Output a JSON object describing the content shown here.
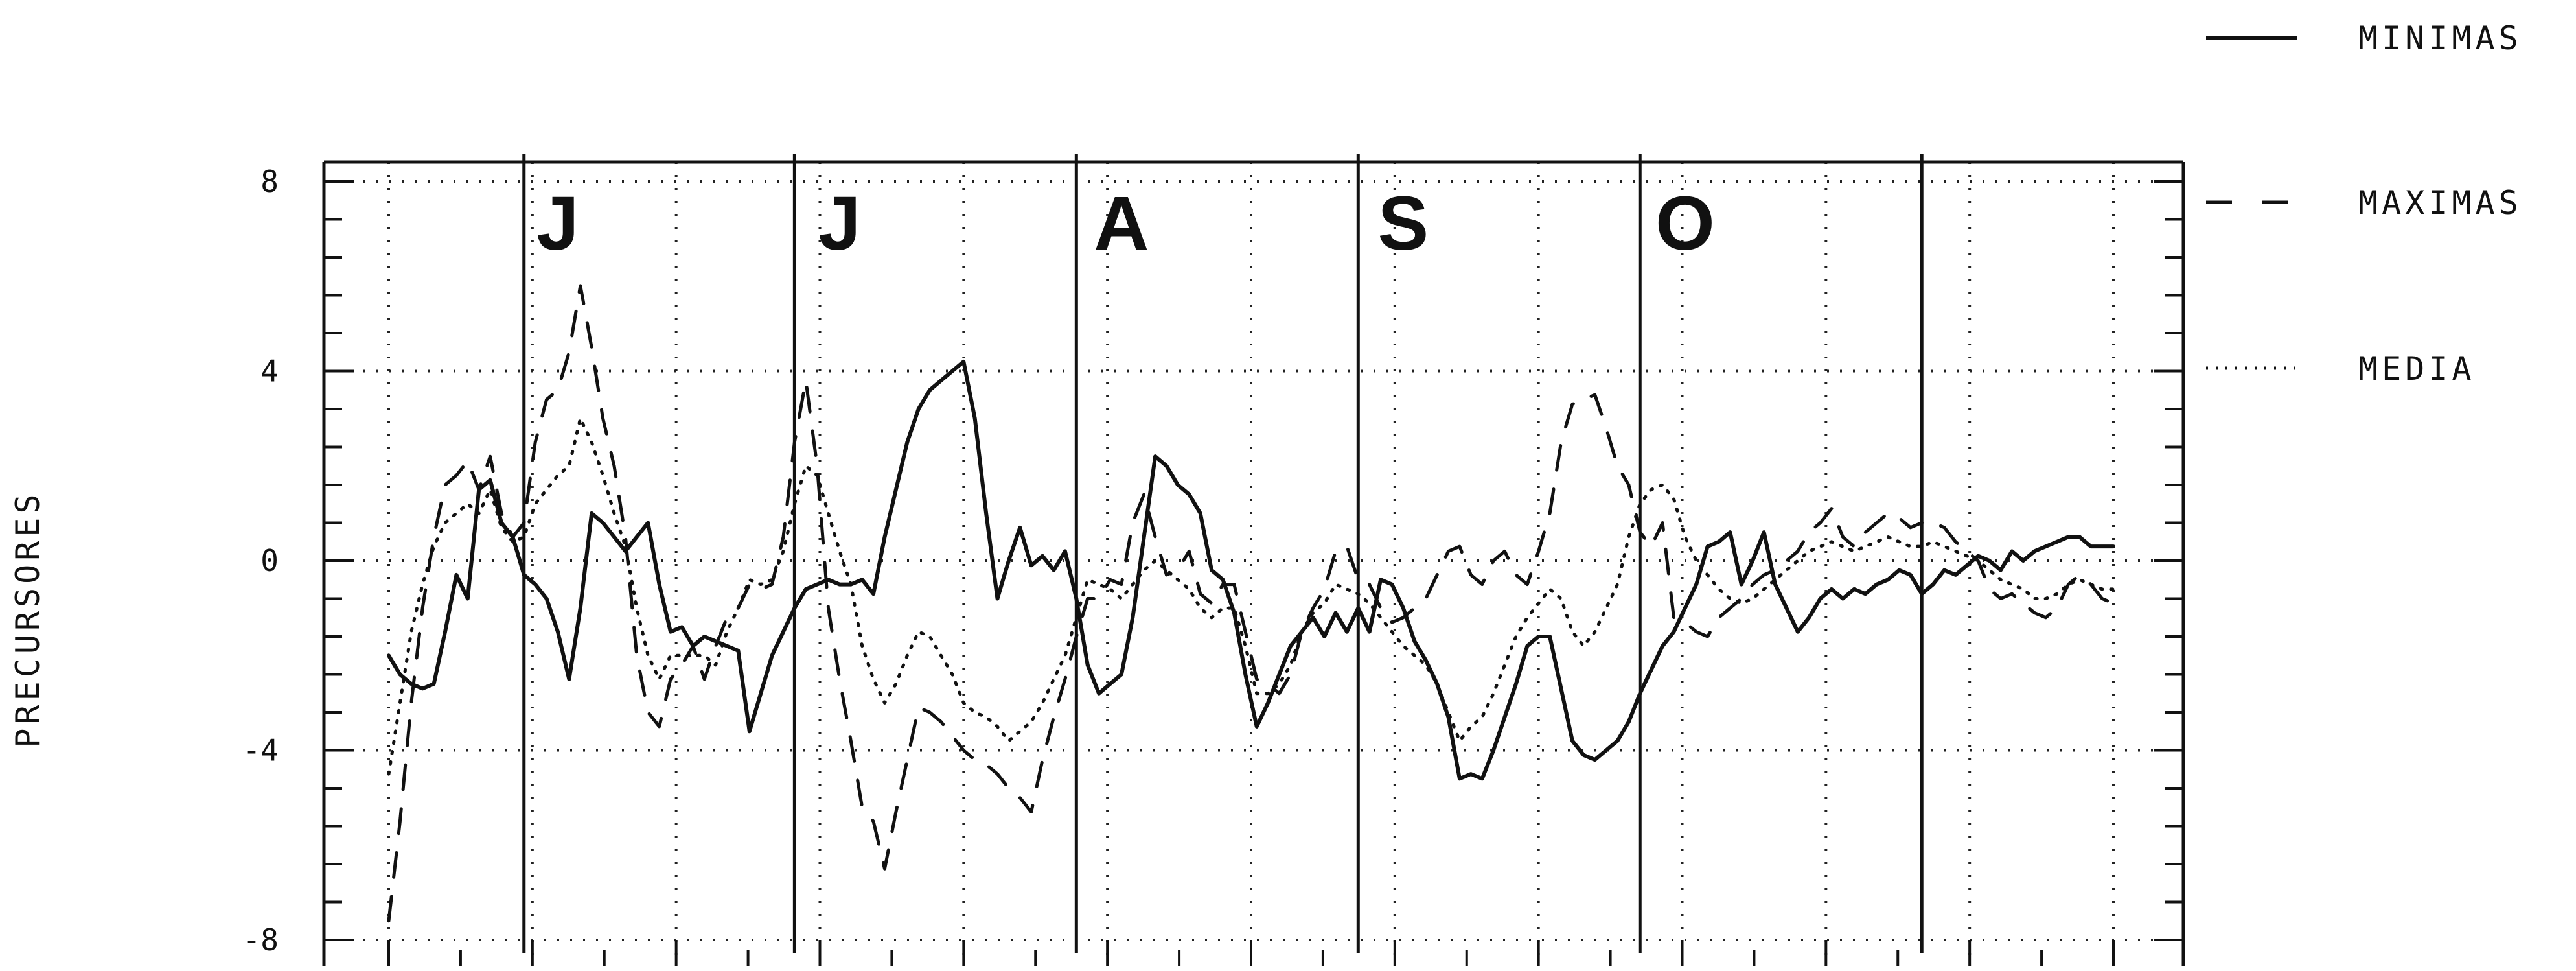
{
  "chart_data": {
    "type": "line",
    "title": "",
    "xlabel": "",
    "ylabel": "PRECURSORES",
    "ylim": [
      -8,
      8
    ],
    "xlim": [
      0,
      153
    ],
    "yticks": [
      8,
      4,
      0,
      -4,
      -8
    ],
    "ytick_labels": [
      "8",
      "4",
      "0",
      "-4",
      "-8"
    ],
    "grid": true,
    "legend_placement": "right",
    "month_labels": [
      {
        "label": "J",
        "x": 15
      },
      {
        "label": "J",
        "x": 40
      },
      {
        "label": "A",
        "x": 65
      },
      {
        "label": "S",
        "x": 90
      },
      {
        "label": "O",
        "x": 115
      }
    ],
    "month_boundaries": [
      12,
      36,
      61,
      86,
      111,
      136
    ],
    "series": [
      {
        "name": "MINIMAS",
        "style": "solid",
        "x": [
          0,
          1,
          2,
          3,
          4,
          5,
          6,
          7,
          8,
          9,
          10,
          11,
          12,
          13,
          14,
          15,
          16,
          17,
          18,
          19,
          20,
          21,
          22,
          23,
          24,
          25,
          26,
          27,
          28,
          29,
          30,
          31,
          32,
          33,
          34,
          35,
          36,
          37,
          38,
          39,
          40,
          41,
          42,
          43,
          44,
          45,
          46,
          47,
          48,
          49,
          50,
          51,
          52,
          53,
          54,
          55,
          56,
          57,
          58,
          59,
          60,
          61,
          62,
          63,
          64,
          65,
          66,
          67,
          68,
          69,
          70,
          71,
          72,
          73,
          74,
          75,
          76,
          77,
          78,
          79,
          80,
          81,
          82,
          83,
          84,
          85,
          86,
          87,
          88,
          89,
          90,
          91,
          92,
          93,
          94,
          95,
          96,
          97,
          98,
          99,
          100,
          101,
          102,
          103,
          104,
          105,
          106,
          107,
          108,
          109,
          110,
          111,
          112,
          113,
          114,
          115,
          116,
          117,
          118,
          119,
          120,
          121,
          122,
          123,
          124,
          125,
          126,
          127,
          128,
          129,
          130,
          131,
          132,
          133,
          134,
          135,
          136,
          137,
          138,
          139,
          140,
          141,
          142,
          143,
          144,
          145,
          146,
          147,
          148,
          149,
          150,
          151,
          152,
          153
        ],
        "values": [
          -2.0,
          -2.4,
          -2.6,
          -2.7,
          -2.6,
          -1.5,
          -0.3,
          -0.8,
          1.5,
          1.7,
          0.8,
          0.5,
          -0.3,
          -0.5,
          -0.8,
          -1.5,
          -2.5,
          -1.0,
          1.0,
          0.8,
          0.5,
          0.2,
          0.5,
          0.8,
          -0.5,
          -1.5,
          -1.4,
          -1.8,
          -1.6,
          -1.7,
          -1.8,
          -1.9,
          -3.6,
          -2.8,
          -2.0,
          -1.5,
          -1.0,
          -0.6,
          -0.5,
          -0.4,
          -0.5,
          -0.5,
          -0.4,
          -0.7,
          0.5,
          1.5,
          2.5,
          3.2,
          3.6,
          3.8,
          4.0,
          4.2,
          3.0,
          1.0,
          -0.8,
          0.0,
          0.7,
          -0.1,
          0.1,
          -0.2,
          0.2,
          -0.8,
          -2.2,
          -2.8,
          -2.6,
          -2.4,
          -1.2,
          0.5,
          2.2,
          2.0,
          1.6,
          1.4,
          1.0,
          -0.2,
          -0.4,
          -1.1,
          -2.4,
          -3.5,
          -3.0,
          -2.4,
          -1.8,
          -1.5,
          -1.2,
          -1.6,
          -1.1,
          -1.5,
          -1.0,
          -1.5,
          -0.4,
          -0.5,
          -1.0,
          -1.7,
          -2.1,
          -2.6,
          -3.3,
          -4.6,
          -4.5,
          -4.6,
          -4.0,
          -3.3,
          -2.6,
          -1.8,
          -1.6,
          -1.6,
          -2.7,
          -3.8,
          -4.1,
          -4.2,
          -4.0,
          -3.8,
          -3.4,
          -2.8,
          -2.3,
          -1.8,
          -1.5,
          -1.0,
          -0.5,
          0.3,
          0.4,
          0.6,
          -0.5,
          0.0,
          0.6,
          -0.5,
          -1.0,
          -1.5,
          -1.2,
          -0.8,
          -0.6,
          -0.8,
          -0.6,
          -0.7,
          -0.5,
          -0.4,
          -0.2,
          -0.3,
          -0.7,
          -0.5,
          -0.2,
          -0.3,
          -0.1,
          0.1,
          0.0,
          -0.2,
          0.2,
          0.0,
          0.2,
          0.3,
          0.4,
          0.5,
          0.5,
          0.3,
          0.3,
          0.3
        ]
      },
      {
        "name": "MAXIMAS",
        "style": "dashed",
        "x": [
          0,
          1,
          2,
          3,
          4,
          5,
          6,
          7,
          8,
          9,
          10,
          11,
          12,
          13,
          14,
          15,
          16,
          17,
          18,
          19,
          20,
          21,
          22,
          23,
          24,
          25,
          26,
          27,
          28,
          29,
          30,
          31,
          32,
          33,
          34,
          35,
          36,
          37,
          38,
          39,
          40,
          41,
          42,
          43,
          44,
          45,
          46,
          47,
          48,
          49,
          50,
          51,
          52,
          53,
          54,
          55,
          56,
          57,
          58,
          59,
          60,
          61,
          62,
          63,
          64,
          65,
          66,
          67,
          68,
          69,
          70,
          71,
          72,
          73,
          74,
          75,
          76,
          77,
          78,
          79,
          80,
          81,
          82,
          83,
          84,
          85,
          86,
          87,
          88,
          89,
          90,
          91,
          92,
          93,
          94,
          95,
          96,
          97,
          98,
          99,
          100,
          101,
          102,
          103,
          104,
          105,
          106,
          107,
          108,
          109,
          110,
          111,
          112,
          113,
          114,
          115,
          116,
          117,
          118,
          119,
          120,
          121,
          122,
          123,
          124,
          125,
          126,
          127,
          128,
          129,
          130,
          131,
          132,
          133,
          134,
          135,
          136,
          137,
          138,
          139,
          140,
          141,
          142,
          143,
          144,
          145,
          146,
          147,
          148,
          149,
          150,
          151,
          152,
          153
        ],
        "values": [
          -7.6,
          -5.5,
          -3.0,
          -1.0,
          0.5,
          1.6,
          1.8,
          2.1,
          1.5,
          2.2,
          1.0,
          0.5,
          0.8,
          2.5,
          3.4,
          3.6,
          4.4,
          5.8,
          4.5,
          3.0,
          2.0,
          0.5,
          -2.0,
          -3.2,
          -3.5,
          -2.5,
          -2.2,
          -1.8,
          -2.5,
          -1.8,
          -1.2,
          -1.0,
          -0.5,
          -0.6,
          -0.5,
          0.5,
          2.5,
          3.8,
          2.0,
          -1.0,
          -2.5,
          -3.8,
          -5.2,
          -5.5,
          -6.5,
          -5.3,
          -4.2,
          -3.1,
          -3.2,
          -3.4,
          -3.7,
          -4.0,
          -4.2,
          -4.3,
          -4.5,
          -4.8,
          -5.0,
          -5.3,
          -4.2,
          -3.3,
          -2.5,
          -1.6,
          -0.8,
          -0.8,
          -0.4,
          -0.5,
          0.8,
          1.4,
          0.5,
          -0.3,
          -0.2,
          0.2,
          -0.7,
          -0.9,
          -0.5,
          -0.5,
          -1.5,
          -2.5,
          -2.6,
          -2.8,
          -2.4,
          -1.5,
          -1.0,
          -0.6,
          0.2,
          0.3,
          -0.4,
          -0.5,
          -1.0,
          -1.3,
          -1.2,
          -1.0,
          -0.8,
          -0.3,
          0.2,
          0.3,
          -0.3,
          -0.5,
          0.0,
          0.2,
          -0.3,
          -0.5,
          0.2,
          1.0,
          2.5,
          3.3,
          3.4,
          3.5,
          2.8,
          2.0,
          1.6,
          0.6,
          0.3,
          0.8,
          -1.2,
          -1.3,
          -1.5,
          -1.6,
          -1.2,
          -1.0,
          -0.8,
          -0.5,
          -0.3,
          -0.2,
          0.0,
          0.2,
          0.6,
          0.8,
          1.1,
          0.5,
          0.3,
          0.6,
          0.8,
          1.0,
          0.9,
          0.7,
          0.8,
          0.8,
          0.7,
          0.4,
          0.2,
          0.0,
          -0.6,
          -0.8,
          -0.7,
          -0.9,
          -1.1,
          -1.2,
          -1.0,
          -0.5,
          -0.3,
          -0.5,
          -0.8,
          -0.9
        ]
      },
      {
        "name": "MEDIA",
        "style": "dotted",
        "x": [
          0,
          1,
          2,
          3,
          4,
          5,
          6,
          7,
          8,
          9,
          10,
          11,
          12,
          13,
          14,
          15,
          16,
          17,
          18,
          19,
          20,
          21,
          22,
          23,
          24,
          25,
          26,
          27,
          28,
          29,
          30,
          31,
          32,
          33,
          34,
          35,
          36,
          37,
          38,
          39,
          40,
          41,
          42,
          43,
          44,
          45,
          46,
          47,
          48,
          49,
          50,
          51,
          52,
          53,
          54,
          55,
          56,
          57,
          58,
          59,
          60,
          61,
          62,
          63,
          64,
          65,
          66,
          67,
          68,
          69,
          70,
          71,
          72,
          73,
          74,
          75,
          76,
          77,
          78,
          79,
          80,
          81,
          82,
          83,
          84,
          85,
          86,
          87,
          88,
          89,
          90,
          91,
          92,
          93,
          94,
          95,
          96,
          97,
          98,
          99,
          100,
          101,
          102,
          103,
          104,
          105,
          106,
          107,
          108,
          109,
          110,
          111,
          112,
          113,
          114,
          115,
          116,
          117,
          118,
          119,
          120,
          121,
          122,
          123,
          124,
          125,
          126,
          127,
          128,
          129,
          130,
          131,
          132,
          133,
          134,
          135,
          136,
          137,
          138,
          139,
          140,
          141,
          142,
          143,
          144,
          145,
          146,
          147,
          148,
          149,
          150,
          151,
          152,
          153
        ],
        "values": [
          -4.5,
          -3.0,
          -1.5,
          -0.5,
          0.3,
          0.8,
          1.0,
          1.2,
          1.0,
          1.5,
          0.7,
          0.4,
          0.5,
          1.2,
          1.5,
          1.8,
          2.0,
          3.0,
          2.5,
          1.8,
          1.0,
          0.3,
          -1.0,
          -2.0,
          -2.5,
          -2.0,
          -2.0,
          -2.0,
          -2.0,
          -2.2,
          -1.5,
          -1.0,
          -0.4,
          -0.5,
          -0.4,
          0.2,
          1.2,
          2.0,
          1.8,
          1.0,
          0.2,
          -0.5,
          -1.8,
          -2.5,
          -3.0,
          -2.6,
          -2.0,
          -1.5,
          -1.6,
          -2.0,
          -2.4,
          -3.0,
          -3.2,
          -3.3,
          -3.5,
          -3.8,
          -3.6,
          -3.4,
          -3.0,
          -2.5,
          -2.0,
          -1.2,
          -0.4,
          -0.5,
          -0.6,
          -0.8,
          -0.5,
          -0.2,
          0.0,
          -0.2,
          -0.4,
          -0.6,
          -1.0,
          -1.2,
          -1.0,
          -1.0,
          -1.8,
          -2.8,
          -2.8,
          -2.6,
          -2.2,
          -1.5,
          -1.1,
          -0.9,
          -0.5,
          -0.6,
          -0.7,
          -0.9,
          -1.2,
          -1.5,
          -1.8,
          -2.0,
          -2.2,
          -2.6,
          -3.2,
          -3.8,
          -3.5,
          -3.3,
          -2.8,
          -2.2,
          -1.6,
          -1.2,
          -0.9,
          -0.6,
          -0.8,
          -1.5,
          -1.8,
          -1.5,
          -1.0,
          -0.5,
          0.5,
          1.2,
          1.5,
          1.6,
          1.3,
          0.5,
          0.0,
          -0.3,
          -0.6,
          -0.8,
          -0.9,
          -0.8,
          -0.6,
          -0.4,
          -0.2,
          0.0,
          0.2,
          0.3,
          0.4,
          0.3,
          0.2,
          0.3,
          0.4,
          0.5,
          0.4,
          0.3,
          0.3,
          0.4,
          0.3,
          0.2,
          0.1,
          0.0,
          -0.2,
          -0.4,
          -0.5,
          -0.6,
          -0.8,
          -0.8,
          -0.7,
          -0.5,
          -0.4,
          -0.5,
          -0.6,
          -0.6
        ]
      }
    ]
  }
}
